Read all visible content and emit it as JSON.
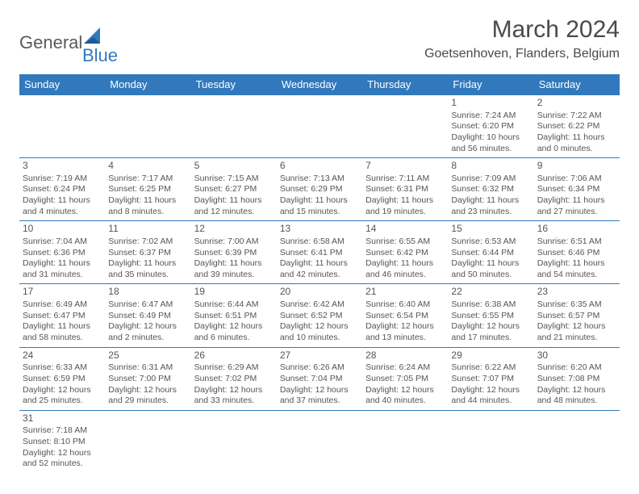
{
  "logo": {
    "general": "General",
    "blue": "Blue"
  },
  "title": "March 2024",
  "location": "Goetsenhoven, Flanders, Belgium",
  "colors": {
    "header_bg": "#3179bc",
    "header_text": "#ffffff",
    "cell_border": "#3179bc",
    "body_text": "#555555",
    "title_text": "#4a4a4a"
  },
  "dayHeaders": [
    "Sunday",
    "Monday",
    "Tuesday",
    "Wednesday",
    "Thursday",
    "Friday",
    "Saturday"
  ],
  "weeks": [
    [
      null,
      null,
      null,
      null,
      null,
      {
        "n": "1",
        "sr": "7:24 AM",
        "ss": "6:20 PM",
        "dl": "10 hours and 56 minutes."
      },
      {
        "n": "2",
        "sr": "7:22 AM",
        "ss": "6:22 PM",
        "dl": "11 hours and 0 minutes."
      }
    ],
    [
      {
        "n": "3",
        "sr": "7:19 AM",
        "ss": "6:24 PM",
        "dl": "11 hours and 4 minutes."
      },
      {
        "n": "4",
        "sr": "7:17 AM",
        "ss": "6:25 PM",
        "dl": "11 hours and 8 minutes."
      },
      {
        "n": "5",
        "sr": "7:15 AM",
        "ss": "6:27 PM",
        "dl": "11 hours and 12 minutes."
      },
      {
        "n": "6",
        "sr": "7:13 AM",
        "ss": "6:29 PM",
        "dl": "11 hours and 15 minutes."
      },
      {
        "n": "7",
        "sr": "7:11 AM",
        "ss": "6:31 PM",
        "dl": "11 hours and 19 minutes."
      },
      {
        "n": "8",
        "sr": "7:09 AM",
        "ss": "6:32 PM",
        "dl": "11 hours and 23 minutes."
      },
      {
        "n": "9",
        "sr": "7:06 AM",
        "ss": "6:34 PM",
        "dl": "11 hours and 27 minutes."
      }
    ],
    [
      {
        "n": "10",
        "sr": "7:04 AM",
        "ss": "6:36 PM",
        "dl": "11 hours and 31 minutes."
      },
      {
        "n": "11",
        "sr": "7:02 AM",
        "ss": "6:37 PM",
        "dl": "11 hours and 35 minutes."
      },
      {
        "n": "12",
        "sr": "7:00 AM",
        "ss": "6:39 PM",
        "dl": "11 hours and 39 minutes."
      },
      {
        "n": "13",
        "sr": "6:58 AM",
        "ss": "6:41 PM",
        "dl": "11 hours and 42 minutes."
      },
      {
        "n": "14",
        "sr": "6:55 AM",
        "ss": "6:42 PM",
        "dl": "11 hours and 46 minutes."
      },
      {
        "n": "15",
        "sr": "6:53 AM",
        "ss": "6:44 PM",
        "dl": "11 hours and 50 minutes."
      },
      {
        "n": "16",
        "sr": "6:51 AM",
        "ss": "6:46 PM",
        "dl": "11 hours and 54 minutes."
      }
    ],
    [
      {
        "n": "17",
        "sr": "6:49 AM",
        "ss": "6:47 PM",
        "dl": "11 hours and 58 minutes."
      },
      {
        "n": "18",
        "sr": "6:47 AM",
        "ss": "6:49 PM",
        "dl": "12 hours and 2 minutes."
      },
      {
        "n": "19",
        "sr": "6:44 AM",
        "ss": "6:51 PM",
        "dl": "12 hours and 6 minutes."
      },
      {
        "n": "20",
        "sr": "6:42 AM",
        "ss": "6:52 PM",
        "dl": "12 hours and 10 minutes."
      },
      {
        "n": "21",
        "sr": "6:40 AM",
        "ss": "6:54 PM",
        "dl": "12 hours and 13 minutes."
      },
      {
        "n": "22",
        "sr": "6:38 AM",
        "ss": "6:55 PM",
        "dl": "12 hours and 17 minutes."
      },
      {
        "n": "23",
        "sr": "6:35 AM",
        "ss": "6:57 PM",
        "dl": "12 hours and 21 minutes."
      }
    ],
    [
      {
        "n": "24",
        "sr": "6:33 AM",
        "ss": "6:59 PM",
        "dl": "12 hours and 25 minutes."
      },
      {
        "n": "25",
        "sr": "6:31 AM",
        "ss": "7:00 PM",
        "dl": "12 hours and 29 minutes."
      },
      {
        "n": "26",
        "sr": "6:29 AM",
        "ss": "7:02 PM",
        "dl": "12 hours and 33 minutes."
      },
      {
        "n": "27",
        "sr": "6:26 AM",
        "ss": "7:04 PM",
        "dl": "12 hours and 37 minutes."
      },
      {
        "n": "28",
        "sr": "6:24 AM",
        "ss": "7:05 PM",
        "dl": "12 hours and 40 minutes."
      },
      {
        "n": "29",
        "sr": "6:22 AM",
        "ss": "7:07 PM",
        "dl": "12 hours and 44 minutes."
      },
      {
        "n": "30",
        "sr": "6:20 AM",
        "ss": "7:08 PM",
        "dl": "12 hours and 48 minutes."
      }
    ],
    [
      {
        "n": "31",
        "sr": "7:18 AM",
        "ss": "8:10 PM",
        "dl": "12 hours and 52 minutes."
      },
      null,
      null,
      null,
      null,
      null,
      null
    ]
  ],
  "labels": {
    "sunrise": "Sunrise: ",
    "sunset": "Sunset: ",
    "daylight": "Daylight: "
  }
}
